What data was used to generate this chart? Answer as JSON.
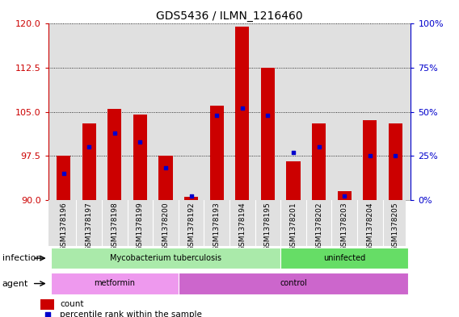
{
  "title": "GDS5436 / ILMN_1216460",
  "samples": [
    "GSM1378196",
    "GSM1378197",
    "GSM1378198",
    "GSM1378199",
    "GSM1378200",
    "GSM1378192",
    "GSM1378193",
    "GSM1378194",
    "GSM1378195",
    "GSM1378201",
    "GSM1378202",
    "GSM1378203",
    "GSM1378204",
    "GSM1378205"
  ],
  "bar_heights": [
    97.5,
    103.0,
    105.5,
    104.5,
    97.5,
    90.5,
    106.0,
    119.5,
    112.5,
    96.5,
    103.0,
    91.5,
    103.5,
    103.0
  ],
  "percentile_values": [
    15,
    30,
    38,
    33,
    18,
    2,
    48,
    52,
    48,
    27,
    30,
    2,
    25,
    25
  ],
  "bar_base": 90,
  "ylim_left": [
    90,
    120
  ],
  "ylim_right": [
    0,
    100
  ],
  "yticks_left": [
    90,
    97.5,
    105,
    112.5,
    120
  ],
  "yticks_right": [
    0,
    25,
    50,
    75,
    100
  ],
  "bar_color": "#cc0000",
  "percentile_color": "#0000cc",
  "infection_groups": [
    {
      "label": "Mycobacterium tuberculosis",
      "start": 0,
      "end": 8,
      "color": "#aaeaaa"
    },
    {
      "label": "uninfected",
      "start": 9,
      "end": 13,
      "color": "#66dd66"
    }
  ],
  "agent_groups": [
    {
      "label": "metformin",
      "start": 0,
      "end": 4,
      "color": "#ee99ee"
    },
    {
      "label": "control",
      "start": 5,
      "end": 13,
      "color": "#cc66cc"
    }
  ],
  "infection_label": "infection",
  "agent_label": "agent",
  "legend_count_label": "count",
  "legend_percentile_label": "percentile rank within the sample",
  "bar_width": 0.55,
  "background_color": "#ffffff",
  "plot_bg_color": "#e0e0e0",
  "title_color": "#000000",
  "left_axis_color": "#cc0000",
  "right_axis_color": "#0000cc"
}
